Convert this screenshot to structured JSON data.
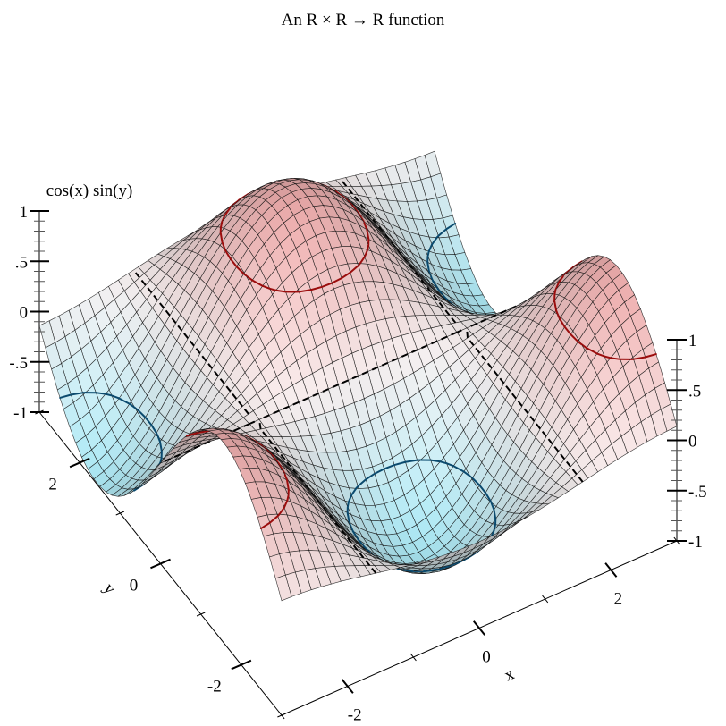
{
  "chart_data": {
    "type": "surface3d",
    "title": "An R × R → R function",
    "xlabel": "x",
    "ylabel": "y",
    "zlabel": "cos(x) sin(y)",
    "function": "cos(x) sin(y)",
    "xlim": [
      -3,
      3
    ],
    "ylim": [
      -3,
      3
    ],
    "zlim": [
      -1,
      1
    ],
    "x_ticks": [
      {
        "v": -2,
        "label": "-2"
      },
      {
        "v": 0,
        "label": "0"
      },
      {
        "v": 2,
        "label": "2"
      }
    ],
    "y_ticks": [
      {
        "v": -2,
        "label": "-2"
      },
      {
        "v": 0,
        "label": "0"
      },
      {
        "v": 2,
        "label": "2"
      }
    ],
    "z_ticks": [
      {
        "v": 1,
        "label": "1"
      },
      {
        "v": 0.5,
        "label": ".5"
      },
      {
        "v": 0,
        "label": "0"
      },
      {
        "v": -0.5,
        "label": "-.5"
      },
      {
        "v": -1,
        "label": "-1"
      }
    ],
    "samples": 40,
    "contours": [
      {
        "level": -0.6,
        "color": "#0b4a6e",
        "dashed": false
      },
      {
        "level": 0,
        "color": "#000000",
        "dashed": true
      },
      {
        "level": 0.6,
        "color": "#9b0d0d",
        "dashed": false
      }
    ],
    "colors": {
      "high": "#e8a8a8",
      "mid": "#f2eaea",
      "low": "#a8e4f0"
    }
  }
}
